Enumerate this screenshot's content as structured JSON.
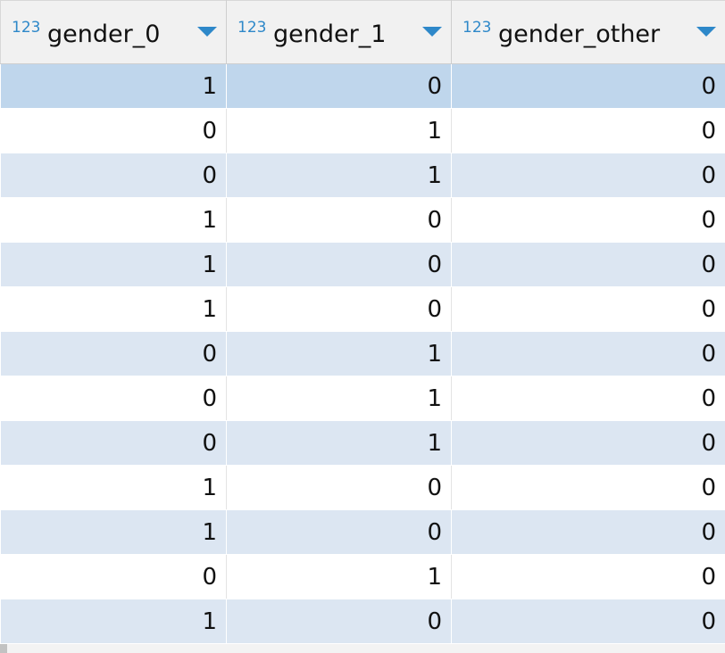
{
  "columns": [
    {
      "type_icon": "123",
      "label": "gender_0"
    },
    {
      "type_icon": "123",
      "label": "gender_1"
    },
    {
      "type_icon": "123",
      "label": "gender_other"
    }
  ],
  "rows": [
    [
      "1",
      "0",
      "0"
    ],
    [
      "0",
      "1",
      "0"
    ],
    [
      "0",
      "1",
      "0"
    ],
    [
      "1",
      "0",
      "0"
    ],
    [
      "1",
      "0",
      "0"
    ],
    [
      "1",
      "0",
      "0"
    ],
    [
      "0",
      "1",
      "0"
    ],
    [
      "0",
      "1",
      "0"
    ],
    [
      "0",
      "1",
      "0"
    ],
    [
      "1",
      "0",
      "0"
    ],
    [
      "1",
      "0",
      "0"
    ],
    [
      "0",
      "1",
      "0"
    ],
    [
      "1",
      "0",
      "0"
    ]
  ],
  "selected_row": 0,
  "colors": {
    "header_bg": "#f1f1f1",
    "row_alt": "#dce6f2",
    "row_selected": "#bfd6ec",
    "icon_accent": "#2e88c9"
  },
  "icons": {
    "type": "numeric-type-icon",
    "sort": "sort-dropdown-icon"
  }
}
